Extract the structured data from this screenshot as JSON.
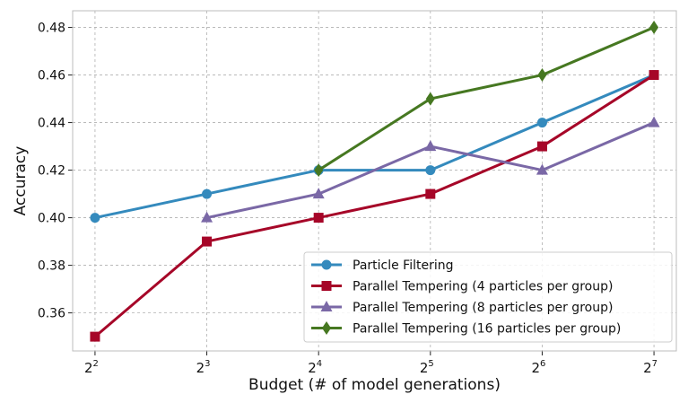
{
  "chart_data": {
    "type": "line",
    "title": "",
    "xlabel": "Budget (# of model generations)",
    "ylabel": "Accuracy",
    "x_base": "2",
    "x_exponents": [
      "2",
      "3",
      "4",
      "5",
      "6",
      "7"
    ],
    "ylim": [
      0.344,
      0.487
    ],
    "yticks": [
      0.36,
      0.38,
      0.4,
      0.42,
      0.44,
      0.46,
      0.48
    ],
    "ytick_labels": [
      "0.36",
      "0.38",
      "0.40",
      "0.42",
      "0.44",
      "0.46",
      "0.48"
    ],
    "grid": true,
    "legend_position": "lower-right",
    "series": [
      {
        "name": "Particle Filtering",
        "color": "#348abd",
        "marker": "circle",
        "x": [
          2,
          3,
          4,
          5,
          6,
          7
        ],
        "values": [
          0.4,
          0.41,
          0.42,
          0.42,
          0.44,
          0.46
        ]
      },
      {
        "name": "Parallel Tempering (4 particles per group)",
        "color": "#a60628",
        "marker": "square",
        "x": [
          2,
          3,
          4,
          5,
          6,
          7
        ],
        "values": [
          0.35,
          0.39,
          0.4,
          0.41,
          0.43,
          0.46
        ]
      },
      {
        "name": "Parallel Tempering (8 particles per group)",
        "color": "#7a68a6",
        "marker": "triangle",
        "x": [
          3,
          4,
          5,
          6,
          7
        ],
        "values": [
          0.4,
          0.41,
          0.43,
          0.42,
          0.44
        ]
      },
      {
        "name": "Parallel Tempering (16 particles per group)",
        "color": "#467821",
        "marker": "diamond",
        "x": [
          4,
          5,
          6,
          7
        ],
        "values": [
          0.42,
          0.45,
          0.46,
          0.48
        ]
      }
    ]
  }
}
